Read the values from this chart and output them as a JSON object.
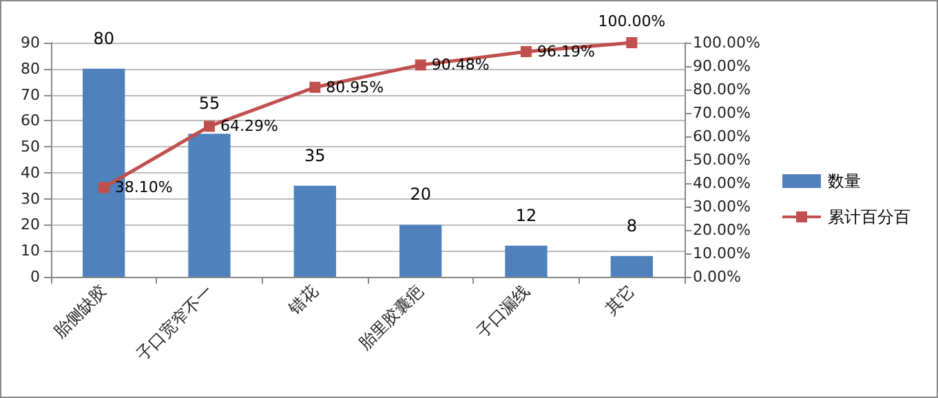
{
  "chart_data": {
    "type": "bar",
    "categories": [
      "胎侧缺胶",
      "子口宽窄不一",
      "错花",
      "胎里胶囊疤",
      "子口漏线",
      "其它"
    ],
    "series": [
      {
        "name": "数量",
        "color": "#4f81bd",
        "values": [
          80,
          55,
          35,
          20,
          12,
          8
        ]
      },
      {
        "name": "累计百分百",
        "type": "line",
        "axis": "y2",
        "color": "#c0504d",
        "values": [
          38.1,
          64.29,
          80.95,
          90.48,
          96.19,
          100.0
        ],
        "marker": "square",
        "value_labels": [
          "38.10%",
          "64.29%",
          "80.95%",
          "90.48%",
          "96.19%",
          "100.00%"
        ]
      }
    ],
    "ylim": [
      0,
      90
    ],
    "yticks": [
      0,
      10,
      20,
      30,
      40,
      50,
      60,
      70,
      80,
      90
    ],
    "y2lim": [
      0,
      100
    ],
    "y2ticks": [
      {
        "value": 0,
        "label": "0.00%"
      },
      {
        "value": 10,
        "label": "10.00%"
      },
      {
        "value": 20,
        "label": "20.00%"
      },
      {
        "value": 30,
        "label": "30.00%"
      },
      {
        "value": 40,
        "label": "40.00%"
      },
      {
        "value": 50,
        "label": "50.00%"
      },
      {
        "value": 60,
        "label": "60.00%"
      },
      {
        "value": 70,
        "label": "70.00%"
      },
      {
        "value": 80,
        "label": "80.00%"
      },
      {
        "value": 90,
        "label": "90.00%"
      },
      {
        "value": 100,
        "label": "100.00%"
      }
    ],
    "grid": "y",
    "legend": "right",
    "data_labels": true
  }
}
